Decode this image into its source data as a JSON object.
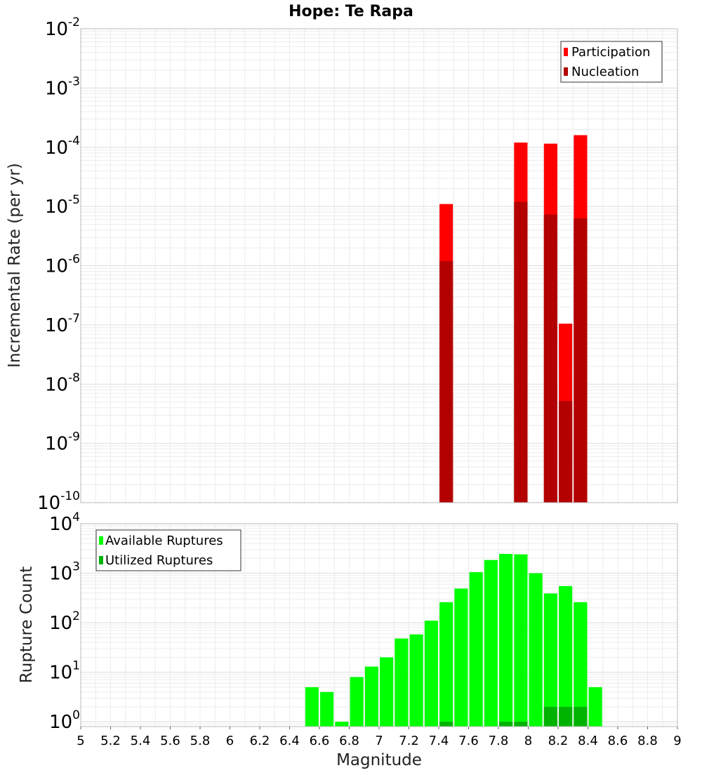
{
  "chart_data": [
    {
      "type": "bar",
      "title": "Hope: Te Rapa",
      "ylabel": "Incremental Rate (per yr)",
      "xlabel": "",
      "yscale": "log",
      "ylim": [
        1e-10,
        0.01
      ],
      "xlim": [
        5,
        9
      ],
      "grid": true,
      "legend_position": "top-right",
      "x": [
        7.45,
        7.95,
        8.15,
        8.25,
        8.35
      ],
      "series": [
        {
          "name": "Participation",
          "color": "#ff0000",
          "values": [
            1.1e-05,
            0.00012,
            0.000115,
            1.05e-07,
            0.00016
          ]
        },
        {
          "name": "Nucleation",
          "color": "#b30000",
          "values": [
            1.2e-06,
            1.2e-05,
            7.3e-06,
            5.2e-09,
            6.3e-06
          ]
        }
      ],
      "ytick_labels": [
        {
          "base": "10",
          "exp": "-10",
          "value": 1e-10
        },
        {
          "base": "10",
          "exp": "-9",
          "value": 1e-09
        },
        {
          "base": "10",
          "exp": "-8",
          "value": 1e-08
        },
        {
          "base": "10",
          "exp": "-7",
          "value": 1e-07
        },
        {
          "base": "10",
          "exp": "-6",
          "value": 1e-06
        },
        {
          "base": "10",
          "exp": "-5",
          "value": 1e-05
        },
        {
          "base": "10",
          "exp": "-4",
          "value": 0.0001
        },
        {
          "base": "10",
          "exp": "-3",
          "value": 0.001
        },
        {
          "base": "10",
          "exp": "-2",
          "value": 0.01
        }
      ]
    },
    {
      "type": "bar",
      "title": "",
      "ylabel": "Rupture Count",
      "xlabel": "Magnitude",
      "yscale": "log",
      "ylim": [
        0.8,
        10000
      ],
      "xlim": [
        5,
        9
      ],
      "grid": true,
      "legend_position": "top-left",
      "x": [
        6.55,
        6.65,
        6.75,
        6.85,
        6.95,
        7.05,
        7.15,
        7.25,
        7.35,
        7.45,
        7.55,
        7.65,
        7.75,
        7.85,
        7.95,
        8.05,
        8.15,
        8.25,
        8.35,
        8.45
      ],
      "series": [
        {
          "name": "Available Ruptures",
          "color": "#00ff00",
          "values": [
            5,
            4,
            1,
            8,
            13,
            20,
            48,
            58,
            110,
            260,
            490,
            1050,
            1850,
            2450,
            2400,
            1000,
            390,
            550,
            260,
            5
          ]
        },
        {
          "name": "Utilized Ruptures",
          "color": "#00b300",
          "values": [
            0,
            0,
            0,
            0,
            0,
            0,
            0,
            0,
            0,
            1,
            0,
            0,
            0,
            1,
            1,
            0,
            2,
            2,
            2,
            0
          ]
        }
      ],
      "ytick_labels": [
        {
          "base": "10",
          "exp": "0",
          "value": 1
        },
        {
          "base": "10",
          "exp": "1",
          "value": 10
        },
        {
          "base": "10",
          "exp": "2",
          "value": 100
        },
        {
          "base": "10",
          "exp": "3",
          "value": 1000
        },
        {
          "base": "10",
          "exp": "4",
          "value": 10000
        }
      ],
      "xtick_labels": [
        "5",
        "5.2",
        "5.4",
        "5.6",
        "5.8",
        "6",
        "6.2",
        "6.4",
        "6.6",
        "6.8",
        "7",
        "7.2",
        "7.4",
        "7.6",
        "7.8",
        "8",
        "8.2",
        "8.4",
        "8.6",
        "8.8",
        "9"
      ]
    }
  ]
}
